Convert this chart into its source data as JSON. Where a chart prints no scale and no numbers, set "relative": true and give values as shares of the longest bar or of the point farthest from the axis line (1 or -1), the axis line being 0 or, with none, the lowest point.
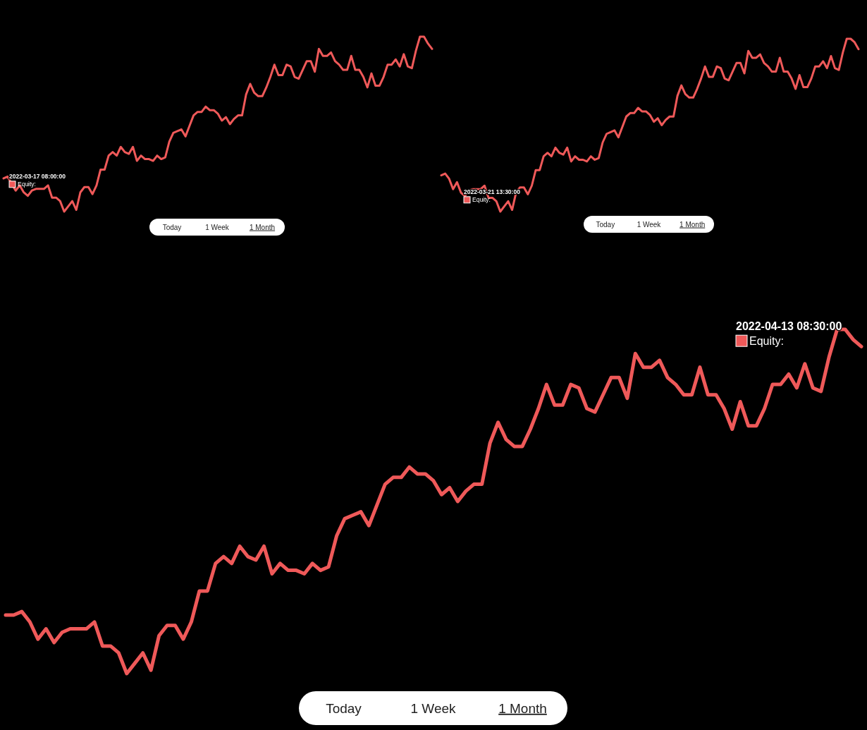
{
  "chart_data": [
    {
      "type": "line",
      "relative": true,
      "categories": [
        null,
        null,
        null,
        null,
        null,
        null,
        null,
        null,
        null,
        null,
        null,
        null,
        null,
        null,
        null,
        null,
        null,
        null,
        null,
        null,
        null,
        null,
        null,
        null,
        null,
        null,
        null,
        null,
        null,
        null,
        null,
        null,
        null,
        null,
        null,
        null,
        null,
        null,
        null,
        null,
        null,
        null,
        null,
        null,
        null,
        null,
        null,
        null,
        null,
        null,
        null,
        null,
        null,
        null,
        null,
        null,
        null,
        null,
        null,
        null,
        null,
        null,
        null,
        null,
        null,
        null,
        null,
        null,
        null,
        null,
        null,
        null,
        null,
        null,
        null,
        null,
        null,
        null,
        null,
        null,
        null,
        null,
        null,
        null,
        null,
        null,
        null,
        null,
        null,
        null,
        null,
        null,
        null,
        null,
        null,
        null,
        null,
        null,
        null,
        null,
        null,
        null,
        null,
        null,
        null,
        null,
        null
      ],
      "series": [
        {
          "color": "#ef5959",
          "values": [
            0.19,
            0.2,
            0.16,
            0.12,
            0.15,
            0.11,
            0.09,
            0.12,
            0.13,
            0.13,
            0.13,
            0.15,
            0.08,
            0.08,
            0.06,
            0,
            0.03,
            0.06,
            0.01,
            0.11,
            0.14,
            0.14,
            0.1,
            0.15,
            0.24,
            0.24,
            0.32,
            0.34,
            0.32,
            0.37,
            0.34,
            0.33,
            0.37,
            0.29,
            0.32,
            0.3,
            0.3,
            0.29,
            0.32,
            0.3,
            0.31,
            0.4,
            0.45,
            0.46,
            0.47,
            0.43,
            0.49,
            0.55,
            0.57,
            0.57,
            0.6,
            0.58,
            0.58,
            0.56,
            0.52,
            0.54,
            0.5,
            0.53,
            0.55,
            0.55,
            0.67,
            0.73,
            0.68,
            0.66,
            0.66,
            0.71,
            0.77,
            0.84,
            0.78,
            0.78,
            0.84,
            0.83,
            0.77,
            0.76,
            0.81,
            0.86,
            0.86,
            0.8,
            0.93,
            0.89,
            0.89,
            0.91,
            0.86,
            0.84,
            0.81,
            0.81,
            0.89,
            0.81,
            0.81,
            0.77,
            0.71,
            0.79,
            0.72,
            0.72,
            0.77,
            0.84,
            0.84,
            0.87,
            0.83,
            0.9,
            0.83,
            0.82,
            0.92,
            1.0,
            1.0,
            0.96,
            0.93
          ]
        }
      ],
      "annotations": [
        "2022-03-17 08:00:00",
        "Equity:",
        "Today",
        "1 Week",
        "1 Month"
      ]
    },
    {
      "type": "line",
      "relative": true,
      "categories": [
        null,
        null,
        null,
        null,
        null,
        null,
        null,
        null,
        null,
        null,
        null,
        null,
        null,
        null,
        null,
        null,
        null,
        null,
        null,
        null,
        null,
        null,
        null,
        null,
        null,
        null,
        null,
        null,
        null,
        null,
        null,
        null,
        null,
        null,
        null,
        null,
        null,
        null,
        null,
        null,
        null,
        null,
        null,
        null,
        null,
        null,
        null,
        null,
        null,
        null,
        null,
        null,
        null,
        null,
        null,
        null,
        null,
        null,
        null,
        null,
        null,
        null,
        null,
        null,
        null,
        null,
        null,
        null,
        null,
        null,
        null,
        null,
        null,
        null,
        null,
        null,
        null,
        null,
        null,
        null,
        null,
        null,
        null,
        null,
        null,
        null,
        null,
        null,
        null,
        null,
        null,
        null,
        null,
        null,
        null,
        null,
        null,
        null,
        null,
        null,
        null,
        null,
        null,
        null,
        null,
        null,
        null
      ],
      "series": [
        {
          "color": "#ef5959",
          "values": [
            0.21,
            0.22,
            0.19,
            0.13,
            0.17,
            0.11,
            0.09,
            0.12,
            0.13,
            0.13,
            0.13,
            0.15,
            0.08,
            0.08,
            0.06,
            0,
            0.03,
            0.06,
            0.01,
            0.11,
            0.14,
            0.14,
            0.1,
            0.15,
            0.24,
            0.24,
            0.32,
            0.34,
            0.32,
            0.37,
            0.34,
            0.33,
            0.37,
            0.29,
            0.32,
            0.3,
            0.3,
            0.29,
            0.32,
            0.3,
            0.31,
            0.4,
            0.45,
            0.46,
            0.47,
            0.43,
            0.49,
            0.55,
            0.57,
            0.57,
            0.6,
            0.58,
            0.58,
            0.56,
            0.52,
            0.54,
            0.5,
            0.53,
            0.55,
            0.55,
            0.67,
            0.73,
            0.68,
            0.66,
            0.66,
            0.71,
            0.77,
            0.84,
            0.78,
            0.78,
            0.84,
            0.83,
            0.77,
            0.76,
            0.81,
            0.86,
            0.86,
            0.8,
            0.93,
            0.89,
            0.89,
            0.91,
            0.86,
            0.84,
            0.81,
            0.81,
            0.89,
            0.81,
            0.81,
            0.77,
            0.71,
            0.79,
            0.72,
            0.72,
            0.77,
            0.84,
            0.84,
            0.87,
            0.83,
            0.9,
            0.83,
            0.82,
            0.92,
            1.0,
            1.0,
            0.98,
            0.94
          ]
        }
      ],
      "annotations": [
        "2022-03-21 13:30:00",
        "Equity:",
        "Today",
        "1 Week",
        "1 Month"
      ]
    },
    {
      "type": "line",
      "relative": true,
      "categories": [
        null,
        null,
        null,
        null,
        null,
        null,
        null,
        null,
        null,
        null,
        null,
        null,
        null,
        null,
        null,
        null,
        null,
        null,
        null,
        null,
        null,
        null,
        null,
        null,
        null,
        null,
        null,
        null,
        null,
        null,
        null,
        null,
        null,
        null,
        null,
        null,
        null,
        null,
        null,
        null,
        null,
        null,
        null,
        null,
        null,
        null,
        null,
        null,
        null,
        null,
        null,
        null,
        null,
        null,
        null,
        null,
        null,
        null,
        null,
        null,
        null,
        null,
        null,
        null,
        null,
        null,
        null,
        null,
        null,
        null,
        null,
        null,
        null,
        null,
        null,
        null,
        null,
        null,
        null,
        null,
        null,
        null,
        null,
        null,
        null,
        null,
        null,
        null,
        null,
        null,
        null,
        null,
        null,
        null,
        null,
        null,
        null,
        null,
        null,
        null,
        null,
        null,
        null,
        null,
        null,
        null,
        null
      ],
      "series": [
        {
          "color": "#ef5959",
          "values": [
            0.17,
            0.17,
            0.18,
            0.15,
            0.1,
            0.13,
            0.09,
            0.12,
            0.13,
            0.13,
            0.13,
            0.15,
            0.08,
            0.08,
            0.06,
            0,
            0.03,
            0.06,
            0.01,
            0.11,
            0.14,
            0.14,
            0.1,
            0.15,
            0.24,
            0.24,
            0.32,
            0.34,
            0.32,
            0.37,
            0.34,
            0.33,
            0.37,
            0.29,
            0.32,
            0.3,
            0.3,
            0.29,
            0.32,
            0.3,
            0.31,
            0.4,
            0.45,
            0.46,
            0.47,
            0.43,
            0.49,
            0.55,
            0.57,
            0.57,
            0.6,
            0.58,
            0.58,
            0.56,
            0.52,
            0.54,
            0.5,
            0.53,
            0.55,
            0.55,
            0.67,
            0.73,
            0.68,
            0.66,
            0.66,
            0.71,
            0.77,
            0.84,
            0.78,
            0.78,
            0.84,
            0.83,
            0.77,
            0.76,
            0.81,
            0.86,
            0.86,
            0.8,
            0.93,
            0.89,
            0.89,
            0.91,
            0.86,
            0.84,
            0.81,
            0.81,
            0.89,
            0.81,
            0.81,
            0.77,
            0.71,
            0.79,
            0.72,
            0.72,
            0.77,
            0.84,
            0.84,
            0.87,
            0.83,
            0.9,
            0.83,
            0.82,
            0.92,
            1.0,
            1.0,
            0.97,
            0.95
          ]
        }
      ],
      "annotations": [
        "2022-04-13 08:30:00",
        "Equity:",
        "Today",
        "1 Week",
        "1 Month"
      ]
    }
  ]
}
